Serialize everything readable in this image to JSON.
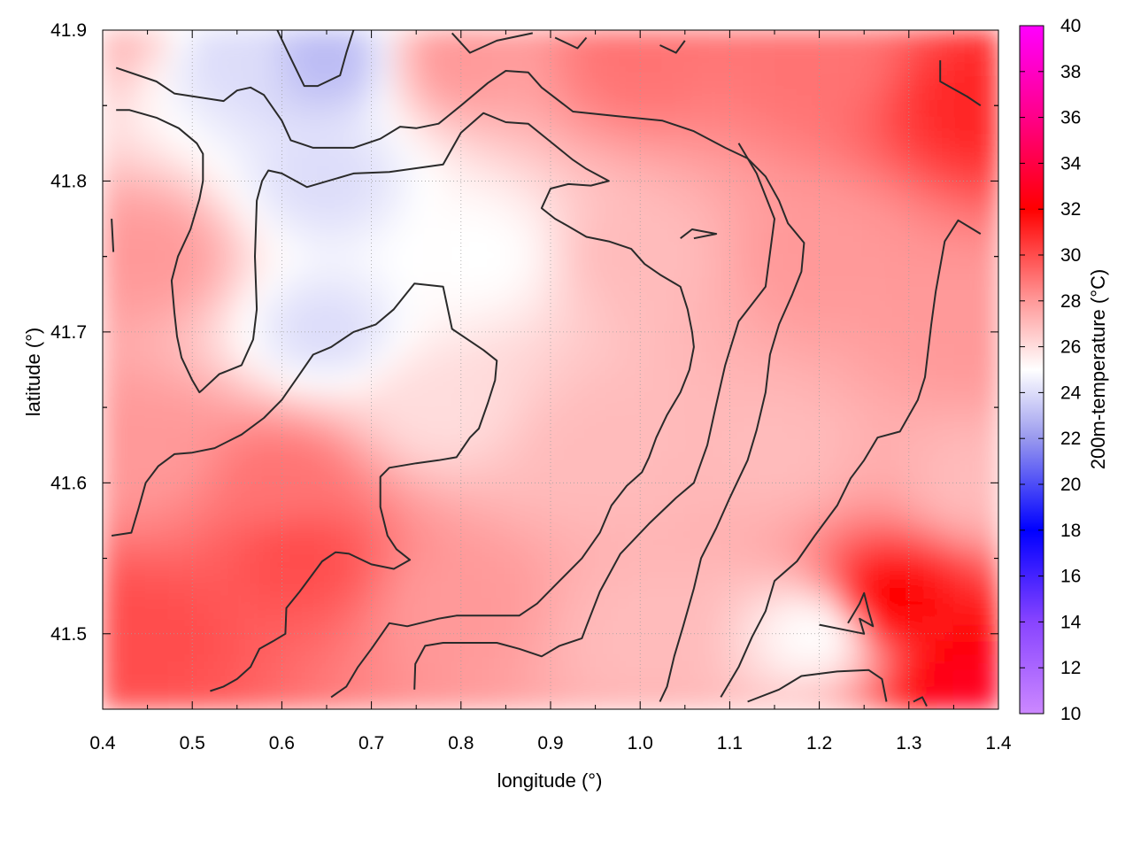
{
  "chart_data": {
    "type": "heatmap",
    "xlabel": "longitude (°)",
    "ylabel": "latitude (°)",
    "colorbar_label": "200m-temperature (°C)",
    "xlim": [
      0.4,
      1.4
    ],
    "ylim": [
      41.45,
      41.9
    ],
    "x_ticks": [
      "0.4",
      "0.5",
      "0.6",
      "0.7",
      "0.8",
      "0.9",
      "1.0",
      "1.1",
      "1.2",
      "1.3",
      "1.4"
    ],
    "y_ticks": [
      "41.5",
      "41.6",
      "41.7",
      "41.8",
      "41.9"
    ],
    "colorbar_ticks": [
      "10",
      "12",
      "14",
      "16",
      "18",
      "20",
      "22",
      "24",
      "26",
      "28",
      "30",
      "32",
      "34",
      "36",
      "38",
      "40"
    ],
    "colorbar_range": [
      10,
      40
    ],
    "colormap": [
      {
        "v": 10,
        "color": "#cc88ff"
      },
      {
        "v": 14,
        "color": "#8844ff"
      },
      {
        "v": 18,
        "color": "#0000ff"
      },
      {
        "v": 22,
        "color": "#9999ee"
      },
      {
        "v": 25,
        "color": "#ffffff"
      },
      {
        "v": 28,
        "color": "#ff9999"
      },
      {
        "v": 32,
        "color": "#ff0000"
      },
      {
        "v": 36,
        "color": "#ff0088"
      },
      {
        "v": 40,
        "color": "#ff00ff"
      }
    ],
    "grid": true,
    "temperature_field_estimate": [
      {
        "lon": 0.4,
        "lat": 41.9,
        "t": 27
      },
      {
        "lon": 0.55,
        "lat": 41.88,
        "t": 24
      },
      {
        "lon": 0.65,
        "lat": 41.88,
        "t": 23
      },
      {
        "lon": 0.8,
        "lat": 41.88,
        "t": 28
      },
      {
        "lon": 1.0,
        "lat": 41.88,
        "t": 29
      },
      {
        "lon": 1.2,
        "lat": 41.88,
        "t": 29
      },
      {
        "lon": 1.38,
        "lat": 41.85,
        "t": 31
      },
      {
        "lon": 0.45,
        "lat": 41.75,
        "t": 28
      },
      {
        "lon": 0.65,
        "lat": 41.8,
        "t": 24
      },
      {
        "lon": 0.65,
        "lat": 41.7,
        "t": 24
      },
      {
        "lon": 0.82,
        "lat": 41.75,
        "t": 25
      },
      {
        "lon": 1.0,
        "lat": 41.75,
        "t": 27
      },
      {
        "lon": 1.2,
        "lat": 41.75,
        "t": 28
      },
      {
        "lon": 1.38,
        "lat": 41.7,
        "t": 28
      },
      {
        "lon": 0.45,
        "lat": 41.62,
        "t": 28
      },
      {
        "lon": 0.6,
        "lat": 41.6,
        "t": 29
      },
      {
        "lon": 0.78,
        "lat": 41.65,
        "t": 26
      },
      {
        "lon": 0.95,
        "lat": 41.62,
        "t": 27
      },
      {
        "lon": 1.15,
        "lat": 41.62,
        "t": 27
      },
      {
        "lon": 1.38,
        "lat": 41.6,
        "t": 27
      },
      {
        "lon": 0.45,
        "lat": 41.5,
        "t": 30
      },
      {
        "lon": 0.62,
        "lat": 41.55,
        "t": 30
      },
      {
        "lon": 0.8,
        "lat": 41.52,
        "t": 28
      },
      {
        "lon": 1.0,
        "lat": 41.5,
        "t": 27
      },
      {
        "lon": 1.2,
        "lat": 41.5,
        "t": 25
      },
      {
        "lon": 1.28,
        "lat": 41.52,
        "t": 32
      },
      {
        "lon": 1.38,
        "lat": 41.46,
        "t": 33
      }
    ],
    "contours": [
      [
        [
          0.415,
          41.875
        ],
        [
          0.46,
          41.866
        ],
        [
          0.48,
          41.858
        ],
        [
          0.535,
          41.853
        ],
        [
          0.55,
          41.86
        ],
        [
          0.565,
          41.862
        ],
        [
          0.58,
          41.857
        ],
        [
          0.6,
          41.84
        ],
        [
          0.61,
          41.827
        ],
        [
          0.635,
          41.822
        ],
        [
          0.66,
          41.822
        ],
        [
          0.68,
          41.822
        ],
        [
          0.71,
          41.828
        ],
        [
          0.732,
          41.836
        ],
        [
          0.75,
          41.835
        ],
        [
          0.775,
          41.838
        ],
        [
          0.8,
          41.85
        ],
        [
          0.83,
          41.865
        ],
        [
          0.85,
          41.873
        ],
        [
          0.875,
          41.872
        ],
        [
          0.89,
          41.862
        ],
        [
          0.925,
          41.846
        ],
        [
          0.975,
          41.843
        ],
        [
          1.025,
          41.84
        ],
        [
          1.06,
          41.833
        ],
        [
          1.095,
          41.822
        ],
        [
          1.12,
          41.815
        ],
        [
          1.14,
          41.803
        ],
        [
          1.155,
          41.787
        ],
        [
          1.165,
          41.772
        ],
        [
          1.183,
          41.759
        ],
        [
          1.18,
          41.74
        ],
        [
          1.17,
          41.725
        ],
        [
          1.155,
          41.705
        ],
        [
          1.145,
          41.685
        ],
        [
          1.14,
          41.66
        ],
        [
          1.13,
          41.635
        ],
        [
          1.12,
          41.615
        ],
        [
          1.1,
          41.59
        ],
        [
          1.085,
          41.57
        ],
        [
          1.068,
          41.55
        ],
        [
          1.06,
          41.53
        ],
        [
          1.048,
          41.505
        ],
        [
          1.038,
          41.485
        ],
        [
          1.03,
          41.465
        ],
        [
          1.022,
          41.455
        ]
      ],
      [
        [
          0.415,
          41.847
        ],
        [
          0.43,
          41.847
        ],
        [
          0.46,
          41.842
        ],
        [
          0.485,
          41.835
        ],
        [
          0.505,
          41.825
        ],
        [
          0.512,
          41.818
        ],
        [
          0.512,
          41.8
        ],
        [
          0.508,
          41.788
        ],
        [
          0.498,
          41.768
        ],
        [
          0.484,
          41.75
        ],
        [
          0.477,
          41.734
        ],
        [
          0.48,
          41.713
        ],
        [
          0.483,
          41.697
        ],
        [
          0.488,
          41.683
        ],
        [
          0.5,
          41.668
        ],
        [
          0.508,
          41.66
        ],
        [
          0.512,
          41.662
        ],
        [
          0.53,
          41.672
        ],
        [
          0.555,
          41.678
        ],
        [
          0.568,
          41.695
        ],
        [
          0.572,
          41.715
        ],
        [
          0.57,
          41.75
        ],
        [
          0.572,
          41.787
        ],
        [
          0.578,
          41.8
        ],
        [
          0.585,
          41.807
        ],
        [
          0.6,
          41.805
        ],
        [
          0.628,
          41.796
        ],
        [
          0.68,
          41.805
        ],
        [
          0.72,
          41.806
        ],
        [
          0.78,
          41.811
        ],
        [
          0.8,
          41.832
        ],
        [
          0.825,
          41.845
        ],
        [
          0.85,
          41.839
        ],
        [
          0.875,
          41.838
        ],
        [
          0.9,
          41.826
        ],
        [
          0.925,
          41.814
        ],
        [
          0.94,
          41.808
        ],
        [
          0.965,
          41.8
        ],
        [
          0.945,
          41.797
        ],
        [
          0.92,
          41.798
        ],
        [
          0.9,
          41.795
        ],
        [
          0.89,
          41.782
        ],
        [
          0.905,
          41.775
        ],
        [
          0.92,
          41.77
        ],
        [
          0.94,
          41.763
        ],
        [
          0.965,
          41.76
        ],
        [
          0.99,
          41.755
        ],
        [
          1.005,
          41.745
        ],
        [
          1.022,
          41.738
        ],
        [
          1.045,
          41.73
        ],
        [
          1.053,
          41.715
        ],
        [
          1.058,
          41.7
        ],
        [
          1.06,
          41.69
        ],
        [
          1.055,
          41.675
        ],
        [
          1.045,
          41.66
        ],
        [
          1.03,
          41.645
        ],
        [
          1.018,
          41.63
        ],
        [
          1.01,
          41.617
        ],
        [
          1.002,
          41.607
        ],
        [
          0.985,
          41.598
        ],
        [
          0.968,
          41.585
        ],
        [
          0.955,
          41.567
        ],
        [
          0.935,
          41.55
        ],
        [
          0.91,
          41.535
        ],
        [
          0.885,
          41.52
        ],
        [
          0.865,
          41.512
        ],
        [
          0.845,
          41.512
        ],
        [
          0.82,
          41.512
        ],
        [
          0.795,
          41.512
        ],
        [
          0.775,
          41.51
        ],
        [
          0.74,
          41.505
        ],
        [
          0.72,
          41.507
        ],
        [
          0.7,
          41.49
        ],
        [
          0.685,
          41.478
        ],
        [
          0.672,
          41.465
        ],
        [
          0.655,
          41.458
        ]
      ],
      [
        [
          0.41,
          41.565
        ],
        [
          0.432,
          41.567
        ],
        [
          0.44,
          41.583
        ],
        [
          0.448,
          41.6
        ],
        [
          0.462,
          41.611
        ],
        [
          0.48,
          41.619
        ],
        [
          0.5,
          41.62
        ],
        [
          0.525,
          41.623
        ],
        [
          0.555,
          41.632
        ],
        [
          0.58,
          41.643
        ],
        [
          0.6,
          41.655
        ],
        [
          0.62,
          41.672
        ],
        [
          0.635,
          41.685
        ],
        [
          0.655,
          41.69
        ],
        [
          0.68,
          41.7
        ],
        [
          0.705,
          41.705
        ],
        [
          0.725,
          41.715
        ],
        [
          0.748,
          41.732
        ],
        [
          0.78,
          41.73
        ],
        [
          0.79,
          41.702
        ],
        [
          0.825,
          41.688
        ],
        [
          0.84,
          41.681
        ],
        [
          0.838,
          41.668
        ],
        [
          0.83,
          41.653
        ],
        [
          0.82,
          41.636
        ],
        [
          0.81,
          41.63
        ],
        [
          0.795,
          41.617
        ],
        [
          0.775,
          41.615
        ],
        [
          0.75,
          41.613
        ],
        [
          0.72,
          41.61
        ],
        [
          0.71,
          41.604
        ],
        [
          0.71,
          41.584
        ],
        [
          0.718,
          41.565
        ],
        [
          0.728,
          41.556
        ],
        [
          0.743,
          41.549
        ],
        [
          0.725,
          41.543
        ],
        [
          0.7,
          41.546
        ],
        [
          0.675,
          41.553
        ],
        [
          0.66,
          41.554
        ],
        [
          0.645,
          41.548
        ],
        [
          0.635,
          41.54
        ],
        [
          0.62,
          41.528
        ],
        [
          0.605,
          41.517
        ],
        [
          0.604,
          41.5
        ],
        [
          0.59,
          41.495
        ],
        [
          0.575,
          41.49
        ],
        [
          0.565,
          41.478
        ],
        [
          0.55,
          41.47
        ],
        [
          0.535,
          41.465
        ],
        [
          0.52,
          41.462
        ]
      ],
      [
        [
          0.748,
          41.463
        ],
        [
          0.749,
          41.48
        ],
        [
          0.76,
          41.492
        ],
        [
          0.78,
          41.494
        ],
        [
          0.815,
          41.494
        ],
        [
          0.84,
          41.494
        ],
        [
          0.865,
          41.49
        ],
        [
          0.89,
          41.485
        ],
        [
          0.91,
          41.492
        ],
        [
          0.935,
          41.497
        ],
        [
          0.94,
          41.505
        ],
        [
          0.955,
          41.528
        ],
        [
          0.978,
          41.553
        ],
        [
          1.01,
          41.573
        ],
        [
          1.04,
          41.59
        ],
        [
          1.06,
          41.6
        ],
        [
          1.075,
          41.625
        ],
        [
          1.085,
          41.652
        ],
        [
          1.095,
          41.678
        ],
        [
          1.11,
          41.707
        ],
        [
          1.14,
          41.73
        ],
        [
          1.15,
          41.775
        ],
        [
          1.13,
          41.805
        ],
        [
          1.11,
          41.825
        ]
      ],
      [
        [
          0.41,
          41.775
        ],
        [
          0.412,
          41.753
        ]
      ],
      [
        [
          1.045,
          41.762
        ],
        [
          1.058,
          41.768
        ],
        [
          1.085,
          41.765
        ],
        [
          1.06,
          41.762
        ]
      ],
      [
        [
          1.12,
          41.455
        ],
        [
          1.155,
          41.463
        ],
        [
          1.18,
          41.472
        ],
        [
          1.22,
          41.475
        ],
        [
          1.255,
          41.476
        ],
        [
          1.27,
          41.47
        ],
        [
          1.275,
          41.455
        ]
      ],
      [
        [
          1.2,
          41.506
        ],
        [
          1.225,
          41.503
        ],
        [
          1.25,
          41.5
        ],
        [
          1.245,
          41.51
        ],
        [
          1.26,
          41.505
        ],
        [
          1.255,
          41.515
        ],
        [
          1.25,
          41.527
        ],
        [
          1.245,
          41.52
        ],
        [
          1.232,
          41.507
        ]
      ],
      [
        [
          1.335,
          41.88
        ],
        [
          1.335,
          41.866
        ],
        [
          1.365,
          41.856
        ],
        [
          1.38,
          41.85
        ]
      ],
      [
        [
          1.305,
          41.455
        ],
        [
          1.315,
          41.458
        ],
        [
          1.32,
          41.452
        ]
      ],
      [
        [
          1.38,
          41.765
        ],
        [
          1.355,
          41.774
        ],
        [
          1.34,
          41.76
        ],
        [
          1.33,
          41.727
        ],
        [
          1.325,
          41.705
        ],
        [
          1.318,
          41.67
        ],
        [
          1.31,
          41.655
        ],
        [
          1.29,
          41.634
        ],
        [
          1.265,
          41.63
        ],
        [
          1.25,
          41.615
        ],
        [
          1.235,
          41.603
        ],
        [
          1.22,
          41.585
        ],
        [
          1.195,
          41.565
        ],
        [
          1.175,
          41.548
        ],
        [
          1.15,
          41.535
        ],
        [
          1.14,
          41.515
        ],
        [
          1.125,
          41.498
        ],
        [
          1.11,
          41.478
        ],
        [
          1.09,
          41.458
        ]
      ],
      [
        [
          0.595,
          41.9
        ],
        [
          0.607,
          41.885
        ],
        [
          0.625,
          41.863
        ],
        [
          0.64,
          41.863
        ],
        [
          0.665,
          41.87
        ],
        [
          0.672,
          41.885
        ],
        [
          0.68,
          41.9
        ]
      ],
      [
        [
          0.79,
          41.898
        ],
        [
          0.81,
          41.885
        ],
        [
          0.84,
          41.893
        ],
        [
          0.88,
          41.898
        ]
      ],
      [
        [
          0.905,
          41.895
        ],
        [
          0.93,
          41.888
        ],
        [
          0.94,
          41.895
        ]
      ],
      [
        [
          1.022,
          41.89
        ],
        [
          1.04,
          41.885
        ],
        [
          1.05,
          41.893
        ]
      ]
    ]
  }
}
